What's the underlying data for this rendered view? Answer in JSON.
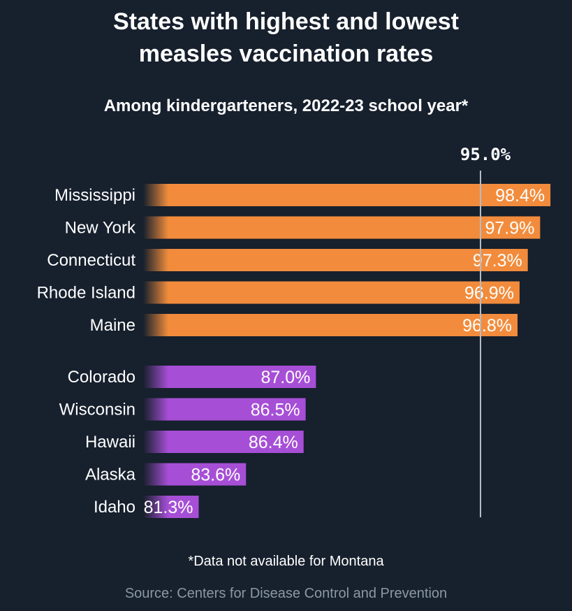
{
  "title": "States with highest and lowest\nmeasles vaccination rates",
  "subtitle": "Among kindergarteners, 2022-23 school year*",
  "footnote": "*Data not available for Montana",
  "source": "Source: Centers for Disease Control and Prevention",
  "colors": {
    "background": "#17202d",
    "highest": "#f28c3c",
    "lowest": "#a64fd6",
    "reference_line": "#b7bcc4",
    "source_text": "#8b98a7"
  },
  "chart_data": {
    "type": "bar",
    "orientation": "horizontal",
    "reference_line": {
      "value": 95.0,
      "label": "95.0%"
    },
    "groups": [
      {
        "group": "highest",
        "categories": [
          "Mississippi",
          "New York",
          "Connecticut",
          "Rhode Island",
          "Maine"
        ],
        "values": [
          98.4,
          97.9,
          97.3,
          96.9,
          96.8
        ],
        "labels": [
          "98.4%",
          "97.9%",
          "97.3%",
          "96.9%",
          "96.8%"
        ]
      },
      {
        "group": "lowest",
        "categories": [
          "Colorado",
          "Wisconsin",
          "Hawaii",
          "Alaska",
          "Idaho"
        ],
        "values": [
          87.0,
          86.5,
          86.4,
          83.6,
          81.3
        ],
        "labels": [
          "87.0%",
          "86.5%",
          "86.4%",
          "83.6%",
          "81.3%"
        ]
      }
    ]
  }
}
